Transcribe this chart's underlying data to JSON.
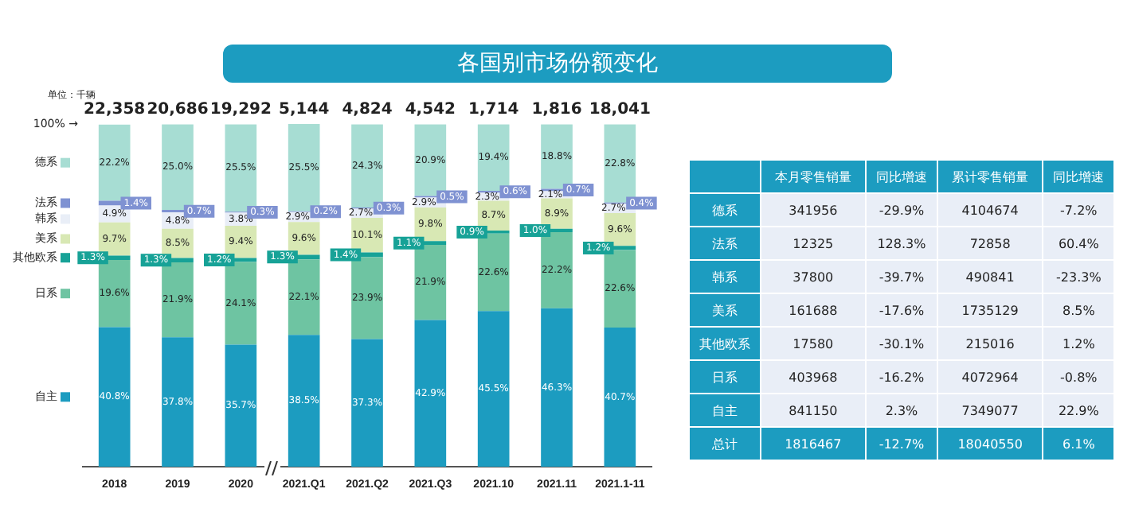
{
  "chart_data": [
    {
      "type": "bar",
      "title": "各国别市场份额变化",
      "stacked": true,
      "categories": [
        "2018",
        "2019",
        "2020",
        "2021.Q1",
        "2021.Q2",
        "2021.Q3",
        "2021.10",
        "2021.11",
        "2021.1-11"
      ],
      "series": [
        {
          "name": "自主",
          "color": "#1c9cc0",
          "values": [
            40.8,
            37.8,
            35.7,
            38.5,
            37.3,
            42.9,
            45.5,
            46.3,
            40.7
          ],
          "value_labels": [
            "40.8%",
            "37.8%",
            "35.7%",
            "38.5%",
            "37.3%",
            "42.9%",
            "45.5%",
            "46.3%",
            "40.7%"
          ]
        },
        {
          "name": "日系",
          "color": "#6ec4a2",
          "values": [
            19.6,
            21.9,
            24.1,
            22.1,
            23.9,
            21.9,
            22.6,
            22.2,
            22.6
          ],
          "value_labels": [
            "19.6%",
            "21.9%",
            "24.1%",
            "22.1%",
            "23.9%",
            "21.9%",
            "22.6%",
            "22.2%",
            "22.6%"
          ]
        },
        {
          "name": "其他欧系",
          "color": "#17a297",
          "values": [
            1.3,
            1.3,
            1.2,
            1.3,
            1.4,
            1.1,
            0.9,
            1.0,
            1.2
          ],
          "value_labels": [
            "1.3%",
            "1.3%",
            "1.2%",
            "1.3%",
            "1.4%",
            "1.1%",
            "0.9%",
            "1.0%",
            "1.2%"
          ]
        },
        {
          "name": "美系",
          "color": "#d8e8b4",
          "values": [
            9.7,
            8.5,
            9.4,
            9.6,
            10.1,
            9.8,
            8.7,
            8.9,
            9.6
          ],
          "value_labels": [
            "9.7%",
            "8.5%",
            "9.4%",
            "9.6%",
            "10.1%",
            "9.8%",
            "8.7%",
            "8.9%",
            "9.6%"
          ]
        },
        {
          "name": "韩系",
          "color": "#e9eef7",
          "values": [
            4.9,
            4.8,
            3.8,
            2.9,
            2.7,
            2.9,
            2.3,
            2.1,
            2.7
          ],
          "value_labels": [
            "4.9%",
            "4.8%",
            "3.8%",
            "2.9%",
            "2.7%",
            "2.9%",
            "2.3%",
            "2.1%",
            "2.7%"
          ]
        },
        {
          "name": "法系",
          "color": "#7f92d2",
          "values": [
            1.4,
            0.7,
            0.3,
            0.2,
            0.3,
            0.5,
            0.6,
            0.7,
            0.4
          ],
          "value_labels": [
            "1.4%",
            "0.7%",
            "0.3%",
            "0.2%",
            "0.3%",
            "0.5%",
            "0.6%",
            "0.7%",
            "0.4%"
          ]
        },
        {
          "name": "德系",
          "color": "#a7ddd3",
          "values": [
            22.2,
            25.0,
            25.5,
            25.5,
            24.3,
            20.9,
            19.4,
            18.8,
            22.8
          ],
          "value_labels": [
            "22.2%",
            "25.0%",
            "25.5%",
            "25.5%",
            "24.3%",
            "20.9%",
            "19.4%",
            "18.8%",
            "22.8%"
          ]
        }
      ],
      "tick_labels": "x",
      "legend": "left",
      "annotations": [
        "单位：千辆",
        "100% →",
        "22,358",
        "20,686",
        "19,292",
        "5,144",
        "4,824",
        "4,542",
        "1,714",
        "1,816",
        "18,041"
      ]
    },
    {
      "type": "other",
      "categories": [
        null,
        "本月零售销量",
        "同比增速",
        "累计零售销量",
        "同比增速"
      ],
      "y_categories": [
        "德系",
        "法系",
        "韩系",
        "美系",
        "其他欧系",
        "日系",
        "自主",
        "总计"
      ],
      "cell_labels": [
        [
          "341956",
          "-29.9%",
          "4104674",
          "-7.2%"
        ],
        [
          "12325",
          "128.3%",
          "72858",
          "60.4%"
        ],
        [
          "37800",
          "-39.7%",
          "490841",
          "-23.3%"
        ],
        [
          "161688",
          "-17.6%",
          "1735129",
          "8.5%"
        ],
        [
          "17580",
          "-30.1%",
          "215016",
          "1.2%"
        ],
        [
          "403968",
          "-16.2%",
          "4072964",
          "-0.8%"
        ],
        [
          "841150",
          "2.3%",
          "7349077",
          "22.9%"
        ],
        [
          "1816467",
          "-12.7%",
          "18040550",
          "6.1%"
        ]
      ]
    }
  ]
}
